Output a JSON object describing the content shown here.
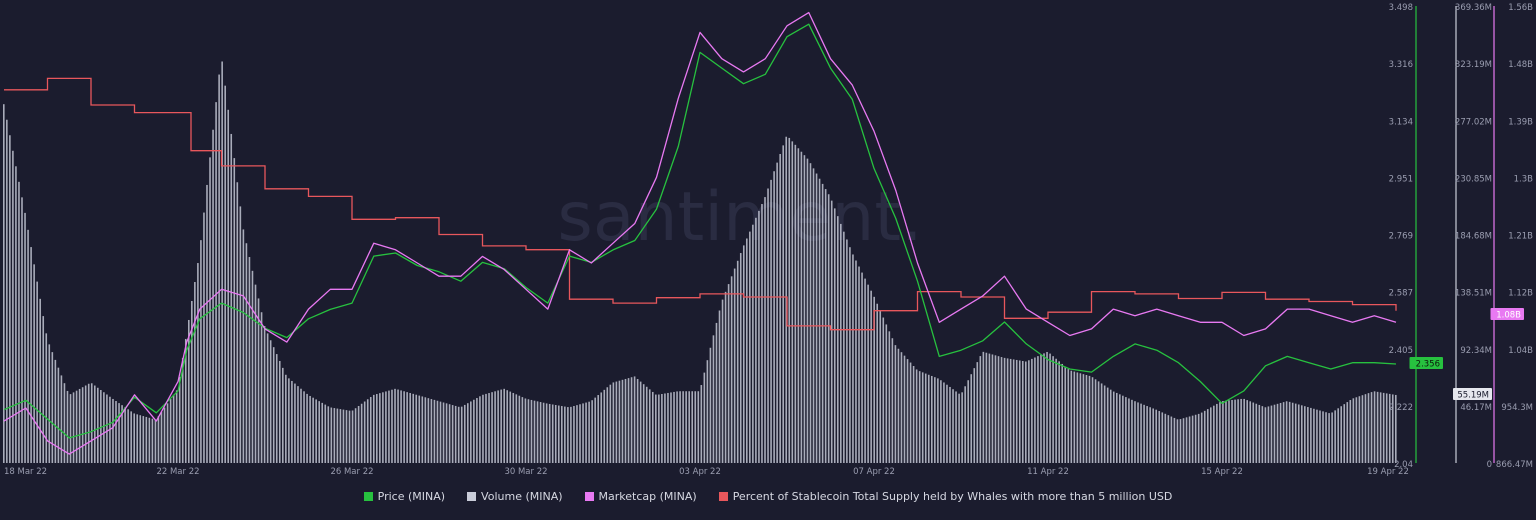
{
  "watermark": "santiment.",
  "chart_data": {
    "type": "line",
    "x_tick_labels": [
      "18 Mar 22",
      "22 Mar 22",
      "26 Mar 22",
      "30 Mar 22",
      "03 Apr 22",
      "07 Apr 22",
      "11 Apr 22",
      "15 Apr 22",
      "19 Apr 22"
    ],
    "axes": {
      "price": {
        "ticks": [
          "3.498",
          "3.316",
          "3.134",
          "2.951",
          "2.769",
          "2.587",
          "2.405",
          "2.222",
          "2.04"
        ],
        "ylim": [
          2.04,
          3.498
        ],
        "color": "#27c13f"
      },
      "volume": {
        "ticks": [
          "369.36M",
          "323.19M",
          "277.02M",
          "230.85M",
          "184.68M",
          "138.51M",
          "92.34M",
          "46.17M",
          "0"
        ],
        "ylim": [
          0,
          369.36
        ],
        "unit": "M",
        "color": "#c9ccd9"
      },
      "marketcap": {
        "ticks": [
          "1.56B",
          "1.48B",
          "1.39B",
          "1.3B",
          "1.21B",
          "1.12B",
          "1.04B",
          "954.3M",
          "866.47M"
        ],
        "ylim": [
          0.86647,
          1.56
        ],
        "unit": "B",
        "color": "#e879f2"
      }
    },
    "last_values": {
      "price": "2.356",
      "volume": "55.19M",
      "marketcap": "1.08B"
    },
    "series": [
      {
        "name": "Price (MINA)",
        "axis": "price",
        "color": "#27c13f",
        "x": [
          0,
          0.5,
          1,
          1.5,
          2,
          2.5,
          3,
          3.5,
          4,
          4.2,
          4.5,
          5,
          5.5,
          6,
          6.5,
          7,
          7.5,
          8,
          8.5,
          9,
          9.5,
          10,
          10.5,
          11,
          11.5,
          12,
          12.5,
          13,
          13.5,
          14,
          14.5,
          15,
          15.5,
          16,
          16.5,
          17,
          17.5,
          18,
          18.5,
          19,
          19.5,
          20,
          20.5,
          21,
          21.5,
          22,
          22.5,
          23,
          23.5,
          24,
          24.5,
          25,
          25.5,
          26,
          26.5,
          27,
          27.5,
          28,
          28.5,
          29,
          29.5,
          30,
          30.5,
          31,
          31.5,
          32
        ],
        "values": [
          2.21,
          2.24,
          2.18,
          2.12,
          2.14,
          2.17,
          2.25,
          2.2,
          2.27,
          2.4,
          2.5,
          2.55,
          2.52,
          2.47,
          2.44,
          2.5,
          2.53,
          2.55,
          2.7,
          2.71,
          2.67,
          2.65,
          2.62,
          2.68,
          2.66,
          2.6,
          2.55,
          2.7,
          2.68,
          2.72,
          2.75,
          2.85,
          3.05,
          3.35,
          3.3,
          3.25,
          3.28,
          3.4,
          3.44,
          3.3,
          3.2,
          2.98,
          2.82,
          2.62,
          2.38,
          2.4,
          2.43,
          2.49,
          2.42,
          2.37,
          2.34,
          2.33,
          2.38,
          2.42,
          2.4,
          2.36,
          2.3,
          2.23,
          2.27,
          2.35,
          2.38,
          2.36,
          2.34,
          2.36,
          2.36,
          2.356
        ]
      },
      {
        "name": "Marketcap (MINA)",
        "axis": "marketcap",
        "color": "#e879f2",
        "x": [
          0,
          0.5,
          1,
          1.5,
          2,
          2.5,
          3,
          3.5,
          4,
          4.2,
          4.5,
          5,
          5.5,
          6,
          6.5,
          7,
          7.5,
          8,
          8.5,
          9,
          9.5,
          10,
          10.5,
          11,
          11.5,
          12,
          12.5,
          13,
          13.5,
          14,
          14.5,
          15,
          15.5,
          16,
          16.5,
          17,
          17.5,
          18,
          18.5,
          19,
          19.5,
          20,
          20.5,
          21,
          21.5,
          22,
          22.5,
          23,
          23.5,
          24,
          24.5,
          25,
          25.5,
          26,
          26.5,
          27,
          27.5,
          28,
          28.5,
          29,
          29.5,
          30,
          30.5,
          31,
          31.5,
          32
        ],
        "values": [
          0.93,
          0.95,
          0.9,
          0.88,
          0.9,
          0.92,
          0.97,
          0.93,
          0.99,
          1.05,
          1.1,
          1.13,
          1.12,
          1.07,
          1.05,
          1.1,
          1.13,
          1.13,
          1.2,
          1.19,
          1.17,
          1.15,
          1.15,
          1.18,
          1.16,
          1.13,
          1.1,
          1.19,
          1.17,
          1.2,
          1.23,
          1.3,
          1.42,
          1.52,
          1.48,
          1.46,
          1.48,
          1.53,
          1.55,
          1.48,
          1.44,
          1.37,
          1.28,
          1.17,
          1.08,
          1.1,
          1.12,
          1.15,
          1.1,
          1.08,
          1.06,
          1.07,
          1.1,
          1.09,
          1.1,
          1.09,
          1.08,
          1.08,
          1.06,
          1.07,
          1.1,
          1.1,
          1.09,
          1.08,
          1.09,
          1.08
        ]
      },
      {
        "name": "Volume (MINA)",
        "axis": "volume",
        "color": "#c9ccd9",
        "type": "bar",
        "x": [
          0,
          0.5,
          1,
          1.5,
          2,
          2.5,
          3,
          3.5,
          4,
          4.5,
          5,
          5.5,
          6,
          6.5,
          7,
          7.5,
          8,
          8.5,
          9,
          9.5,
          10,
          10.5,
          11,
          11.5,
          12,
          12.5,
          13,
          13.5,
          14,
          14.5,
          15,
          15.5,
          16,
          16.5,
          17,
          17.5,
          18,
          18.5,
          19,
          19.5,
          20,
          20.5,
          21,
          21.5,
          22,
          22.5,
          23,
          23.5,
          24,
          24.5,
          25,
          25.5,
          26,
          26.5,
          27,
          27.5,
          28,
          28.5,
          29,
          29.5,
          30,
          30.5,
          31,
          31.5,
          32
        ],
        "values": [
          290,
          200,
          100,
          55,
          65,
          52,
          40,
          35,
          60,
          170,
          330,
          190,
          110,
          70,
          55,
          45,
          42,
          55,
          60,
          55,
          50,
          45,
          55,
          60,
          52,
          48,
          45,
          50,
          65,
          70,
          55,
          58,
          58,
          130,
          175,
          215,
          265,
          245,
          215,
          170,
          135,
          95,
          75,
          68,
          55,
          90,
          85,
          82,
          90,
          75,
          70,
          58,
          50,
          43,
          35,
          40,
          50,
          52,
          45,
          50,
          45,
          40,
          52,
          58,
          55
        ]
      },
      {
        "name": "Percent of Stablecoin Total Supply held by Whales with more than 5 million USD",
        "type": "step",
        "color": "#e8575c",
        "steps_x": [
          0,
          1,
          2,
          3,
          4.3,
          5,
          6,
          7,
          8,
          9,
          10,
          11,
          12,
          13,
          14,
          15,
          16,
          17,
          18,
          19,
          20,
          21,
          22,
          23,
          24,
          25,
          26,
          27,
          28,
          29,
          30,
          31,
          32
        ],
        "values": [
          8.6,
          8.75,
          8.4,
          8.3,
          7.8,
          7.6,
          7.3,
          7.2,
          6.9,
          6.92,
          6.7,
          6.55,
          6.5,
          5.85,
          5.8,
          5.87,
          5.92,
          5.88,
          5.5,
          5.45,
          5.7,
          5.95,
          5.88,
          5.6,
          5.68,
          5.95,
          5.92,
          5.86,
          5.94,
          5.85,
          5.82,
          5.78,
          5.7
        ]
      }
    ],
    "legend": [
      {
        "label": "Price (MINA)",
        "color": "#27c13f"
      },
      {
        "label": "Volume (MINA)",
        "color": "#c9ccd9"
      },
      {
        "label": "Marketcap (MINA)",
        "color": "#e879f2"
      },
      {
        "label": "Percent of Stablecoin Total Supply held by Whales with more than 5 million USD",
        "color": "#e8575c"
      }
    ],
    "grid": false,
    "legend_position": "bottom"
  }
}
